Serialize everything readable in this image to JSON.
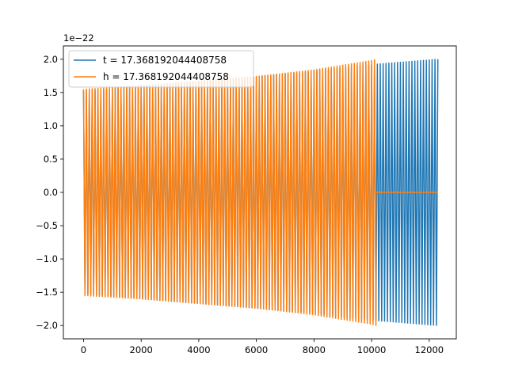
{
  "chart_data": {
    "type": "line",
    "title": "",
    "xlabel": "",
    "ylabel": "",
    "xlim": [
      -700,
      12940
    ],
    "ylim": [
      -2.2e-22,
      2.2e-22
    ],
    "xticks": [
      0,
      2000,
      4000,
      6000,
      8000,
      10000,
      12000
    ],
    "xtick_labels": [
      "0",
      "2000",
      "4000",
      "6000",
      "8000",
      "10000",
      "12000"
    ],
    "yticks": [
      -2e-22,
      -1.5e-22,
      -1e-22,
      -5e-23,
      0,
      5e-23,
      1e-22,
      1.5e-22,
      2e-22
    ],
    "ytick_labels": [
      "−2.0",
      "−1.5",
      "−1.0",
      "−0.5",
      "0.0",
      "0.5",
      "1.0",
      "1.5",
      "2.0"
    ],
    "y_offset_text": "1e−22",
    "grid": false,
    "legend_position": "top-left",
    "series": [
      {
        "name": "t = 17.368192044408758",
        "color": "#1f77b4",
        "x_range": [
          0,
          12300
        ],
        "envelope": {
          "x": [
            0,
            2000,
            4000,
            6000,
            8000,
            10000,
            12300
          ],
          "amplitude": [
            1.52e-22,
            1.6e-22,
            1.67e-22,
            1.74e-22,
            1.82e-22,
            1.92e-22,
            2e-22
          ]
        },
        "oscillation_period": 100
      },
      {
        "name": "h = 17.368192044408758",
        "color": "#ff7f0e",
        "x_range": [
          0,
          10150
        ],
        "zero_after": [
          10150,
          12300
        ],
        "envelope": {
          "x": [
            0,
            2000,
            4000,
            6000,
            8000,
            10000,
            10150
          ],
          "amplitude": [
            1.55e-22,
            1.6e-22,
            1.67e-22,
            1.74e-22,
            1.84e-22,
            1.98e-22,
            2e-22
          ]
        },
        "oscillation_period": 100
      }
    ]
  }
}
